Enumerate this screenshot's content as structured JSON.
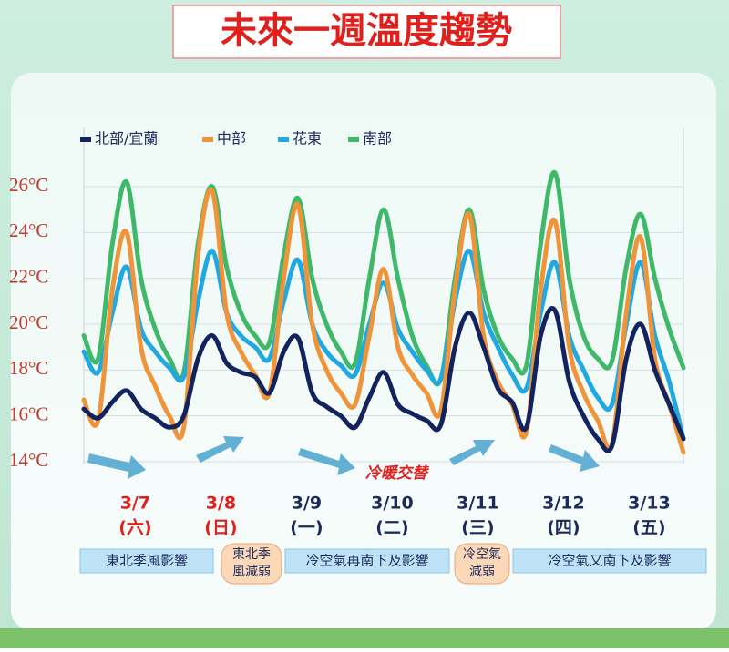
{
  "chart_data": {
    "type": "line",
    "title": "未來一週溫度趨勢",
    "annotation": "冷暖交替",
    "ylim": [
      14,
      26
    ],
    "yticks": [
      {
        "value": 14,
        "label": "14°C"
      },
      {
        "value": 16,
        "label": "16°C"
      },
      {
        "value": 18,
        "label": "18°C"
      },
      {
        "value": 20,
        "label": "20°C"
      },
      {
        "value": 22,
        "label": "22°C"
      },
      {
        "value": 24,
        "label": "24°C"
      },
      {
        "value": 26,
        "label": "26°C"
      }
    ],
    "grid": true,
    "legend": "top",
    "days": [
      {
        "date": "3/7",
        "weekday": "(六)",
        "color": "#e0201c"
      },
      {
        "date": "3/8",
        "weekday": "(日)",
        "color": "#e0201c"
      },
      {
        "date": "3/9",
        "weekday": "(一)",
        "color": "#1c2a5c"
      },
      {
        "date": "3/10",
        "weekday": "(二)",
        "color": "#1c2a5c"
      },
      {
        "date": "3/11",
        "weekday": "(三)",
        "color": "#1c2a5c"
      },
      {
        "date": "3/12",
        "weekday": "(四)",
        "color": "#1c2a5c"
      },
      {
        "date": "3/13",
        "weekday": "(五)",
        "color": "#1c2a5c"
      }
    ],
    "notes": [
      "東北季風影響",
      "東北季風減弱",
      "冷空氣再南下及影響",
      "冷空氣減弱",
      "冷空氣又南下及影響"
    ],
    "series": [
      {
        "name": "北部/宜蘭",
        "color": "#13235e",
        "values": [
          16.3,
          15.9,
          16.6,
          17.1,
          16.3,
          15.9,
          15.5,
          16.0,
          18.5,
          19.5,
          18.3,
          17.9,
          17.7,
          17.0,
          18.8,
          19.4,
          17.0,
          16.4,
          16.0,
          15.5,
          16.8,
          17.9,
          16.5,
          16.1,
          15.8,
          15.6,
          19.0,
          20.5,
          19.0,
          17.2,
          16.6,
          15.5,
          19.5,
          20.6,
          17.5,
          16.0,
          15.0,
          14.7,
          18.5,
          20.0,
          18.0,
          16.5,
          15.0
        ]
      },
      {
        "name": "中部",
        "color": "#f0943a",
        "values": [
          16.7,
          15.8,
          21.5,
          24.0,
          19.0,
          17.3,
          16.0,
          15.5,
          23.0,
          25.8,
          20.5,
          18.8,
          17.8,
          17.0,
          22.0,
          25.2,
          20.0,
          18.0,
          17.0,
          16.5,
          19.5,
          22.4,
          19.0,
          17.8,
          17.0,
          16.2,
          21.5,
          24.8,
          19.5,
          17.5,
          16.5,
          15.3,
          21.5,
          24.5,
          19.0,
          17.0,
          15.8,
          14.8,
          20.5,
          23.8,
          18.5,
          16.5,
          14.4
        ]
      },
      {
        "name": "花東",
        "color": "#21a8e0",
        "values": [
          18.8,
          17.9,
          20.5,
          22.5,
          19.8,
          18.8,
          18.1,
          17.7,
          21.0,
          23.2,
          20.5,
          19.5,
          19.0,
          18.5,
          21.0,
          22.8,
          20.0,
          18.8,
          18.2,
          17.8,
          20.0,
          21.8,
          19.8,
          18.8,
          18.0,
          17.6,
          21.0,
          23.2,
          20.5,
          19.0,
          17.8,
          17.2,
          20.5,
          22.7,
          19.5,
          18.0,
          16.8,
          16.5,
          20.0,
          22.7,
          19.5,
          17.5,
          15.0
        ]
      },
      {
        "name": "南部",
        "color": "#3fb86a",
        "values": [
          19.5,
          18.5,
          23.5,
          26.2,
          22.0,
          19.8,
          18.5,
          17.9,
          23.5,
          26.0,
          22.5,
          20.5,
          19.5,
          19.2,
          23.0,
          25.5,
          22.0,
          20.0,
          18.8,
          18.3,
          22.0,
          25.0,
          22.0,
          19.5,
          18.2,
          17.6,
          22.0,
          25.0,
          21.5,
          19.5,
          18.5,
          18.2,
          23.5,
          26.6,
          22.0,
          19.5,
          18.5,
          18.4,
          22.5,
          24.8,
          22.0,
          19.8,
          18.1
        ]
      }
    ]
  }
}
